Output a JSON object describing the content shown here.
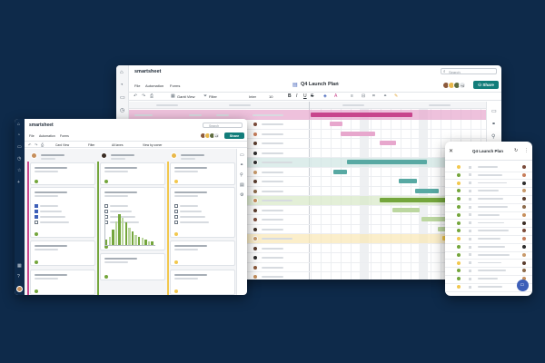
{
  "brand": "smartsheet",
  "colors": {
    "background": "#0e2a4a",
    "accent": "#127d7a",
    "magenta": "#c8458c",
    "pink": "#e7a7cd",
    "teal": "#58a9a3",
    "green": "#74a63c",
    "lightgreen": "#bcd7a0",
    "yellow": "#f2c84e"
  },
  "gantt_window": {
    "menu": [
      "File",
      "Automation",
      "Forms"
    ],
    "sheet_title": "Q4 Launch Plan",
    "view_label": "Gantt View",
    "filter_label": "Filter",
    "font_label": "Inter",
    "font_size": "10",
    "search_placeholder": "Search",
    "avatar_count": "+4",
    "share_label": "Share",
    "icons": [
      "home-icon",
      "bell-icon",
      "folder-icon",
      "clock-icon",
      "star-icon",
      "plus-icon",
      "grid-icon",
      "help-icon"
    ]
  },
  "card_window": {
    "brand": "smartsheet",
    "menu": [
      "File",
      "Automation",
      "Forms"
    ],
    "view_label": "Card View",
    "filter_label": "Filter",
    "lanes_label": "All lanes",
    "viewby_label": "View by owner",
    "search_placeholder": "Search",
    "avatar_count": "+4",
    "share_label": "Share"
  },
  "mobile": {
    "title": "Q4 Launch Plan"
  },
  "histogram": [
    3,
    5,
    9,
    14,
    18,
    16,
    13,
    10,
    8,
    6,
    5,
    4,
    3,
    2,
    2
  ]
}
